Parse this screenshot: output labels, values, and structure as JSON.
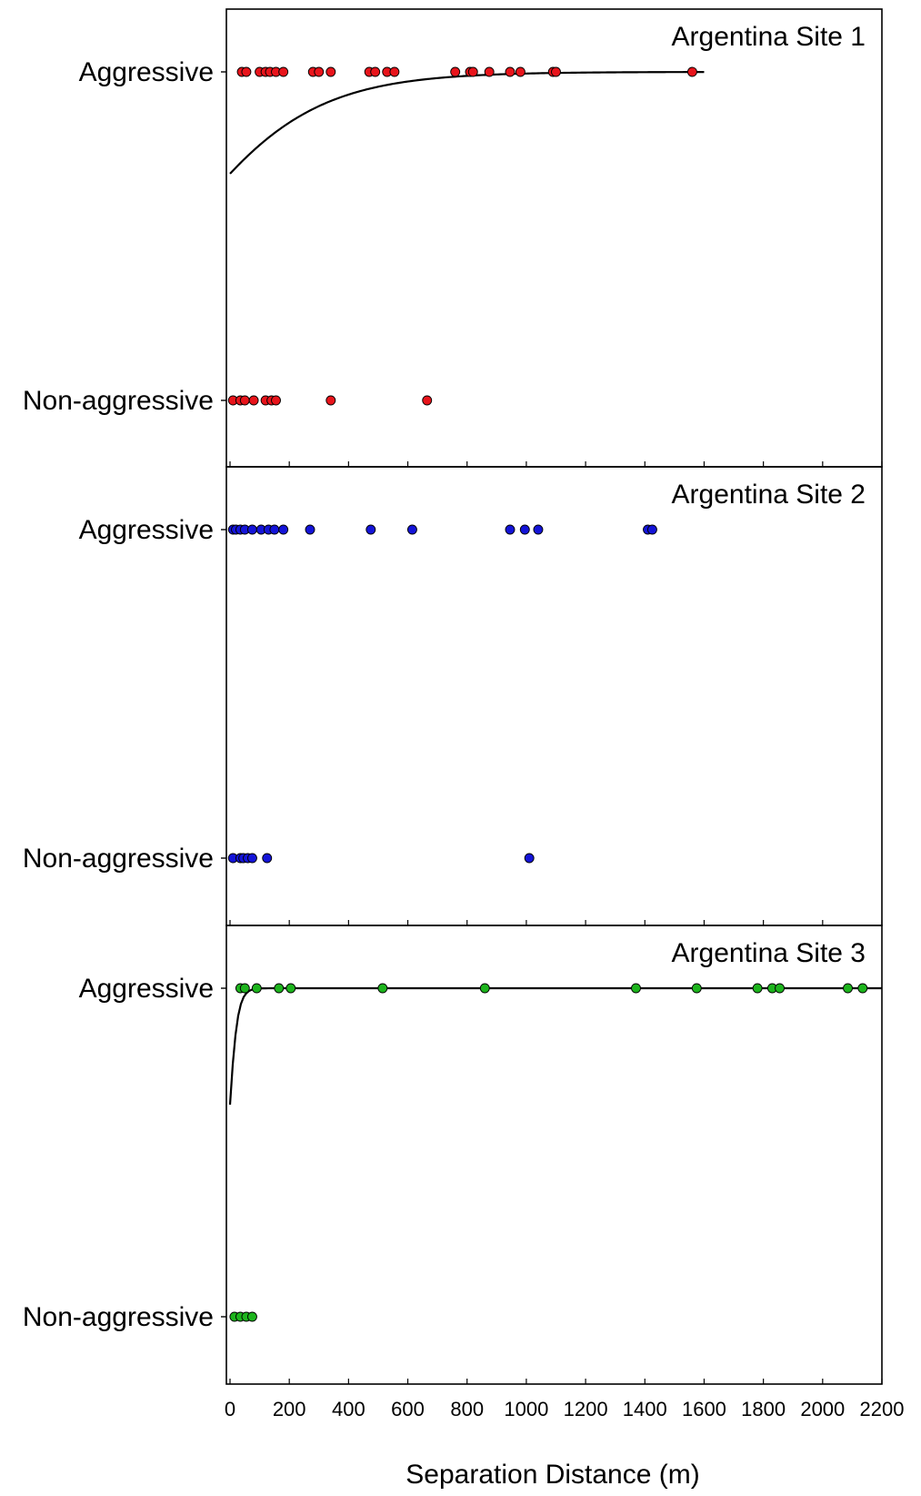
{
  "chart_data": [
    {
      "type": "scatter",
      "title": "Argentina Site 1",
      "categories": [
        "Aggressive",
        "Non-aggressive"
      ],
      "xlim": [
        0,
        2200
      ],
      "color": "#e8141b",
      "fit_curve": "logistic",
      "fit_x_range": [
        0,
        1600
      ],
      "series": [
        {
          "category": "Aggressive",
          "x": [
            40,
            55,
            100,
            120,
            135,
            155,
            180,
            280,
            300,
            340,
            470,
            490,
            530,
            555,
            760,
            810,
            820,
            875,
            945,
            980,
            1090,
            1100,
            1560
          ]
        },
        {
          "category": "Non-aggressive",
          "x": [
            10,
            35,
            50,
            80,
            120,
            140,
            155,
            340,
            665
          ]
        }
      ]
    },
    {
      "type": "scatter",
      "title": "Argentina Site 2",
      "categories": [
        "Aggressive",
        "Non-aggressive"
      ],
      "xlim": [
        0,
        2200
      ],
      "color": "#1414d8",
      "fit_curve": "none",
      "series": [
        {
          "category": "Aggressive",
          "x": [
            10,
            20,
            35,
            50,
            75,
            105,
            130,
            150,
            180,
            270,
            475,
            615,
            945,
            995,
            1040,
            1410,
            1425
          ]
        },
        {
          "category": "Non-aggressive",
          "x": [
            10,
            35,
            45,
            60,
            75,
            125,
            1010
          ]
        }
      ]
    },
    {
      "type": "scatter",
      "title": "Argentina Site 3",
      "categories": [
        "Aggressive",
        "Non-aggressive"
      ],
      "xlim": [
        0,
        2200
      ],
      "color": "#1db41d",
      "fit_curve": "logistic",
      "fit_x_range": [
        0,
        2200
      ],
      "series": [
        {
          "category": "Aggressive",
          "x": [
            35,
            50,
            90,
            165,
            205,
            515,
            860,
            1370,
            1575,
            1780,
            1830,
            1855,
            2085,
            2135
          ]
        },
        {
          "category": "Non-aggressive",
          "x": [
            15,
            35,
            55,
            75
          ]
        }
      ]
    }
  ],
  "x_axis": {
    "label": "Separation Distance (m)",
    "ticks": [
      "0",
      "200",
      "400",
      "600",
      "800",
      "1000",
      "1200",
      "1400",
      "1600",
      "1800",
      "2000",
      "2200"
    ]
  }
}
